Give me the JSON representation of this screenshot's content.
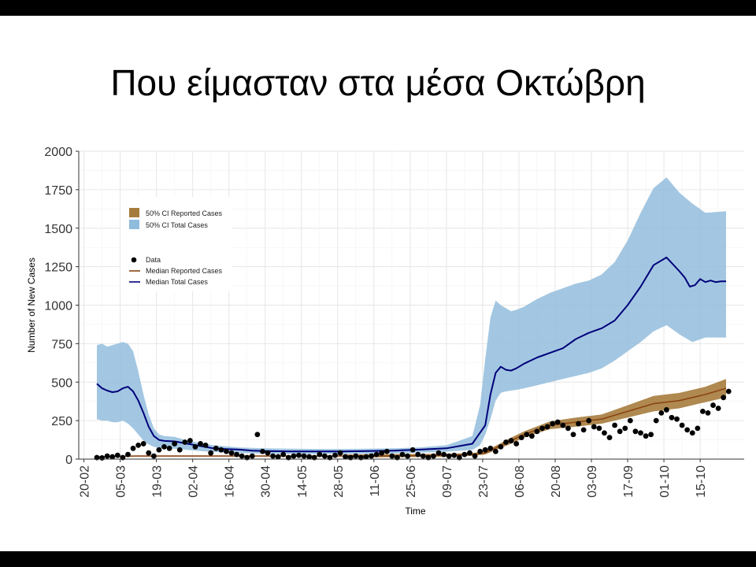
{
  "slide": {
    "title": "Που είμασταν στα μέσα Οκτώβρη"
  },
  "chart_data": {
    "type": "line",
    "title": "",
    "xlabel": "Time",
    "ylabel": "Number of New Cases",
    "ylim": [
      0,
      2000
    ],
    "y_ticks": [
      0,
      250,
      500,
      750,
      1000,
      1250,
      1500,
      1750,
      2000
    ],
    "x_ticks": [
      "20-02",
      "05-03",
      "19-03",
      "02-04",
      "16-04",
      "30-04",
      "14-05",
      "28-05",
      "11-06",
      "25-06",
      "09-07",
      "23-07",
      "06-08",
      "20-08",
      "03-09",
      "17-09",
      "01-10",
      "15-10"
    ],
    "grid": true,
    "legend": {
      "placement": "top-left",
      "ribbon_entries": [
        {
          "label": "50% CI Reported Cases",
          "color": "#a67c3d"
        },
        {
          "label": "50% CI Total Cases",
          "color": "#8fbbdc"
        }
      ],
      "line_entries": [
        {
          "label": "Data",
          "kind": "point",
          "color": "#000000"
        },
        {
          "label": "Median Reported Cases",
          "kind": "line",
          "color": "#8b4513"
        },
        {
          "label": "Median Total Cases",
          "kind": "line",
          "color": "#00007a"
        }
      ]
    },
    "series": [
      {
        "name": "Median Total Cases",
        "color": "#00007a",
        "x_day": [
          5,
          7,
          9,
          11,
          13,
          15,
          17,
          19,
          21,
          23,
          25,
          27,
          29,
          31,
          35,
          40,
          45,
          50,
          55,
          60,
          65,
          70,
          80,
          90,
          100,
          110,
          120,
          130,
          140,
          150,
          155,
          157,
          159,
          161,
          163,
          165,
          167,
          170,
          175,
          180,
          185,
          190,
          195,
          200,
          205,
          210,
          215,
          220,
          225,
          230,
          232,
          234,
          236,
          238,
          240,
          242,
          244,
          246,
          248
        ],
        "values": [
          490,
          460,
          445,
          435,
          440,
          460,
          470,
          440,
          380,
          300,
          210,
          150,
          125,
          118,
          115,
          100,
          85,
          70,
          65,
          62,
          55,
          52,
          50,
          50,
          50,
          52,
          55,
          62,
          70,
          100,
          220,
          420,
          560,
          600,
          580,
          575,
          590,
          620,
          660,
          690,
          720,
          780,
          820,
          850,
          900,
          1000,
          1120,
          1260,
          1310,
          1220,
          1180,
          1120,
          1130,
          1170,
          1150,
          1160,
          1150,
          1155,
          1155
        ]
      },
      {
        "name": "Median Reported Cases",
        "color": "#8b4513",
        "x_day": [
          5,
          20,
          40,
          60,
          80,
          100,
          120,
          140,
          150,
          155,
          160,
          165,
          170,
          180,
          190,
          200,
          210,
          220,
          230,
          240,
          248
        ],
        "values": [
          15,
          20,
          20,
          20,
          20,
          20,
          20,
          25,
          30,
          40,
          80,
          120,
          160,
          220,
          240,
          260,
          310,
          360,
          380,
          420,
          460
        ]
      }
    ],
    "ribbons": [
      {
        "name": "50% CI Total Cases",
        "color": "#8fbbdc",
        "x_day": [
          5,
          7,
          9,
          11,
          13,
          15,
          17,
          19,
          21,
          23,
          25,
          27,
          29,
          31,
          35,
          40,
          45,
          50,
          60,
          70,
          80,
          90,
          100,
          110,
          120,
          130,
          140,
          150,
          153,
          155,
          157,
          159,
          161,
          163,
          165,
          167,
          170,
          175,
          180,
          185,
          190,
          195,
          200,
          205,
          210,
          215,
          220,
          225,
          230,
          235,
          240,
          248
        ],
        "lower": [
          260,
          250,
          250,
          240,
          240,
          250,
          230,
          200,
          160,
          120,
          95,
          80,
          72,
          70,
          68,
          60,
          52,
          46,
          40,
          36,
          34,
          34,
          34,
          35,
          37,
          42,
          48,
          60,
          90,
          160,
          260,
          380,
          430,
          440,
          445,
          450,
          460,
          480,
          500,
          520,
          540,
          560,
          590,
          640,
          700,
          760,
          830,
          870,
          810,
          760,
          790,
          790
        ],
        "upper": [
          740,
          750,
          730,
          740,
          750,
          760,
          750,
          700,
          570,
          420,
          290,
          200,
          160,
          150,
          145,
          120,
          105,
          90,
          75,
          70,
          68,
          66,
          66,
          68,
          70,
          76,
          90,
          150,
          350,
          650,
          920,
          1030,
          1000,
          980,
          960,
          970,
          990,
          1040,
          1080,
          1110,
          1140,
          1160,
          1200,
          1280,
          1420,
          1600,
          1760,
          1830,
          1730,
          1660,
          1600,
          1610
        ]
      },
      {
        "name": "50% CI Reported Cases",
        "color": "#a67c3d",
        "x_day": [
          100,
          140,
          150,
          155,
          160,
          165,
          170,
          180,
          190,
          200,
          210,
          220,
          230,
          240,
          248
        ],
        "lower": [
          10,
          15,
          22,
          30,
          65,
          100,
          140,
          195,
          210,
          230,
          270,
          310,
          330,
          370,
          400
        ],
        "upper": [
          30,
          35,
          40,
          52,
          95,
          140,
          180,
          245,
          270,
          290,
          350,
          410,
          430,
          470,
          520
        ]
      }
    ],
    "scatter": {
      "name": "Data",
      "color": "#000000",
      "x_day": [
        5,
        7,
        9,
        11,
        13,
        15,
        17,
        19,
        21,
        23,
        25,
        27,
        29,
        31,
        33,
        35,
        37,
        39,
        41,
        43,
        45,
        47,
        49,
        51,
        53,
        55,
        57,
        59,
        61,
        63,
        65,
        67,
        69,
        71,
        73,
        75,
        77,
        79,
        81,
        83,
        85,
        87,
        89,
        91,
        93,
        95,
        97,
        99,
        101,
        103,
        105,
        107,
        109,
        111,
        113,
        115,
        117,
        119,
        121,
        123,
        125,
        127,
        129,
        131,
        133,
        135,
        137,
        139,
        141,
        143,
        145,
        147,
        149,
        151,
        153,
        155,
        157,
        159,
        161,
        163,
        165,
        167,
        169,
        171,
        173,
        175,
        177,
        179,
        181,
        183,
        185,
        187,
        189,
        191,
        193,
        195,
        197,
        199,
        201,
        203,
        205,
        207,
        209,
        211,
        213,
        215,
        217,
        219,
        221,
        223,
        225,
        227,
        229,
        231,
        233,
        235,
        237,
        239,
        241,
        243,
        245,
        247,
        249
      ],
      "values": [
        10,
        8,
        20,
        15,
        25,
        10,
        30,
        70,
        90,
        100,
        40,
        20,
        60,
        80,
        70,
        100,
        60,
        110,
        120,
        80,
        100,
        90,
        40,
        70,
        60,
        50,
        40,
        30,
        20,
        10,
        20,
        160,
        50,
        40,
        20,
        15,
        30,
        10,
        20,
        25,
        20,
        15,
        10,
        30,
        20,
        10,
        25,
        40,
        15,
        10,
        20,
        10,
        15,
        20,
        30,
        40,
        50,
        20,
        10,
        30,
        20,
        60,
        30,
        20,
        10,
        20,
        40,
        30,
        20,
        25,
        10,
        30,
        40,
        20,
        50,
        60,
        70,
        50,
        80,
        110,
        120,
        100,
        140,
        160,
        150,
        180,
        200,
        210,
        230,
        240,
        220,
        200,
        160,
        230,
        190,
        250,
        210,
        200,
        170,
        140,
        220,
        180,
        200,
        250,
        180,
        170,
        150,
        160,
        250,
        300,
        320,
        270,
        260,
        220,
        190,
        170,
        200,
        310,
        300,
        350,
        330,
        400,
        440
      ]
    }
  }
}
